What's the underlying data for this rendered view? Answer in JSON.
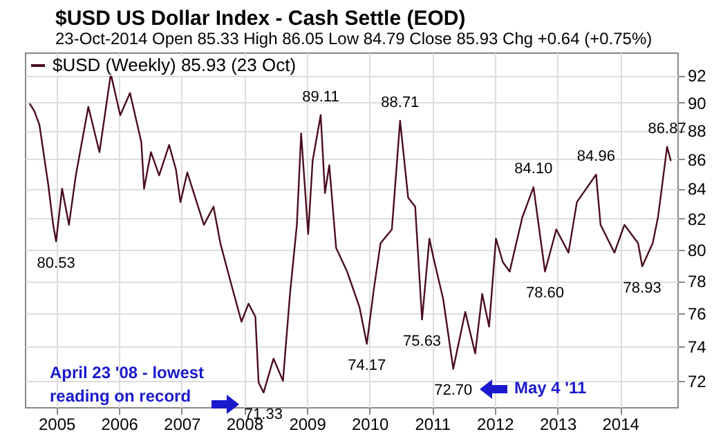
{
  "chart_data": {
    "type": "line",
    "title": "$USD US Dollar Index - Cash Settle (EOD)",
    "subtitle": "23-Oct-2014     Open 85.33  High 86.05  Low 84.79  Close 85.93  Chg +0.64 (+0.75%)",
    "x": [
      "2004-07-31",
      "2004-08-25",
      "2004-09-24",
      "2004-11-14",
      "2004-12-13",
      "2004-12-30",
      "2005-02-03",
      "2005-03-15",
      "2005-04-24",
      "2005-07-06",
      "2005-09-09",
      "2005-11-14",
      "2006-01-08",
      "2006-03-06",
      "2006-05-11",
      "2006-05-27",
      "2006-07-06",
      "2006-08-23",
      "2006-10-20",
      "2006-11-29",
      "2006-12-25",
      "2007-02-03",
      "2007-05-11",
      "2007-07-06",
      "2007-08-15",
      "2007-10-20",
      "2007-12-16",
      "2008-01-26",
      "2008-03-06",
      "2008-03-25",
      "2008-04-23",
      "2008-06-20",
      "2008-08-14",
      "2008-09-24",
      "2008-11-03",
      "2008-11-28",
      "2009-01-08",
      "2009-02-03",
      "2009-03-22",
      "2009-04-16",
      "2009-05-11",
      "2009-06-20",
      "2009-08-23",
      "2009-11-03",
      "2009-12-16",
      "2010-01-26",
      "2010-03-06",
      "2010-05-11",
      "2010-06-28",
      "2010-08-14",
      "2010-09-24",
      "2010-11-03",
      "2010-12-16",
      "2011-01-08",
      "2011-03-06",
      "2011-05-04",
      "2011-07-13",
      "2011-09-09",
      "2011-10-20",
      "2011-11-29",
      "2012-01-08",
      "2012-02-17",
      "2012-03-28",
      "2012-06-10",
      "2012-08-14",
      "2012-10-20",
      "2012-12-25",
      "2013-03-06",
      "2013-04-24",
      "2013-08-14",
      "2013-09-09",
      "2013-11-29",
      "2014-01-26",
      "2014-04-16",
      "2014-05-10",
      "2014-07-10",
      "2014-08-10",
      "2014-10-02",
      "2014-10-23"
    ],
    "series": [
      {
        "name": "$USD (Weekly) 85.93 (23 Oct)",
        "color": "#4a0d1c",
        "values": [
          89.9,
          89.4,
          88.4,
          84.3,
          81.6,
          80.53,
          84.0,
          81.6,
          84.9,
          89.7,
          86.5,
          92.1,
          89.1,
          90.7,
          87.2,
          84.0,
          86.5,
          84.9,
          87.0,
          85.3,
          83.1,
          85.1,
          81.6,
          82.8,
          80.4,
          77.7,
          75.5,
          76.6,
          75.8,
          71.9,
          71.33,
          73.3,
          72.0,
          77.2,
          81.6,
          87.8,
          81.0,
          85.9,
          89.11,
          83.7,
          85.6,
          80.1,
          78.6,
          76.4,
          74.17,
          77.5,
          80.4,
          81.3,
          88.71,
          83.4,
          82.8,
          75.63,
          80.7,
          79.5,
          76.9,
          72.7,
          76.1,
          73.6,
          77.2,
          75.2,
          80.7,
          79.2,
          78.6,
          82.1,
          84.1,
          78.6,
          81.3,
          79.8,
          83.1,
          84.96,
          81.6,
          79.8,
          81.6,
          80.4,
          78.93,
          80.4,
          82.1,
          86.87,
          85.93
        ]
      }
    ],
    "xlim": [
      "2004-07",
      "2014-12"
    ],
    "xticks": [
      "2005",
      "2006",
      "2007",
      "2008",
      "2009",
      "2010",
      "2011",
      "2012",
      "2013",
      "2014"
    ],
    "ylim": [
      70.5,
      93.7
    ],
    "yticks": [
      72,
      74,
      76,
      78,
      80,
      82,
      84,
      86,
      88,
      90,
      92
    ],
    "log": true,
    "grid": true,
    "legend": "top left",
    "annotations": [
      {
        "text": "80.53",
        "x": "2004-12-30",
        "y": 80.53
      },
      {
        "text": "71.33",
        "x": "2008-04-23",
        "y": 71.33
      },
      {
        "text": "89.11",
        "x": "2009-03-22",
        "y": 89.11
      },
      {
        "text": "74.17",
        "x": "2009-12-16",
        "y": 74.17
      },
      {
        "text": "88.71",
        "x": "2010-06-28",
        "y": 88.71
      },
      {
        "text": "75.63",
        "x": "2010-11-03",
        "y": 75.63
      },
      {
        "text": "72.70",
        "x": "2011-05-04",
        "y": 72.7
      },
      {
        "text": "84.10",
        "x": "2012-08-14",
        "y": 84.1
      },
      {
        "text": "78.60",
        "x": "2012-10-20",
        "y": 78.6
      },
      {
        "text": "84.96",
        "x": "2013-08-14",
        "y": 84.96
      },
      {
        "text": "78.93",
        "x": "2014-05-10",
        "y": 78.93
      },
      {
        "text": "86.87",
        "x": "2014-10-02",
        "y": 86.87
      },
      "April 23 '08 - lowest reading on record",
      "May 4 '11"
    ]
  }
}
